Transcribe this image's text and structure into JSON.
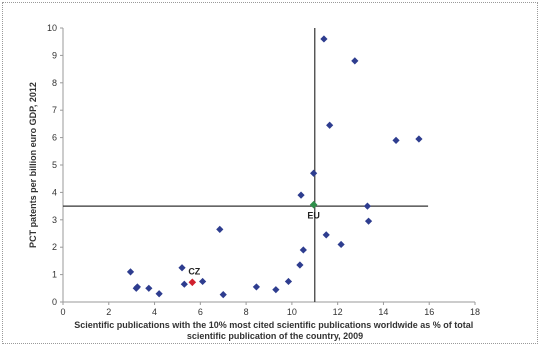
{
  "chart_data": {
    "type": "scatter",
    "title": "",
    "xlabel_lines": [
      "Scientific publications with the 10% most cited scientific publications worldwide as % of total",
      "scientific publication of the country, 2009"
    ],
    "ylabel": "PCT patents per billion euro GDP, 2012",
    "xlim": [
      0,
      18
    ],
    "ylim": [
      0,
      10
    ],
    "x_ticks": [
      "0",
      "2",
      "4",
      "6",
      "8",
      "10",
      "12",
      "14",
      "16",
      "18"
    ],
    "y_ticks": [
      "0",
      "1",
      "2",
      "3",
      "4",
      "5",
      "6",
      "7",
      "8",
      "9",
      "10"
    ],
    "grid": false,
    "colors": {
      "countries": "#2e3d8f",
      "eu": "#2f8f4a",
      "cz": "#d0202e",
      "reference_lines": "#333333",
      "axis": "#9a9a9a"
    },
    "reference_lines": {
      "vertical_x": 11.0,
      "horizontal_y": 3.5,
      "vertical_y_range": [
        0,
        10
      ],
      "horizontal_x_range": [
        0,
        15.95
      ]
    },
    "highlighted": [
      {
        "label": "EU",
        "x": 10.95,
        "y": 3.55,
        "color": "#2f8f4a"
      },
      {
        "label": "CZ",
        "x": 5.65,
        "y": 0.72,
        "color": "#d0202e"
      }
    ],
    "points": [
      {
        "x": 2.95,
        "y": 1.1
      },
      {
        "x": 3.2,
        "y": 0.5
      },
      {
        "x": 3.25,
        "y": 0.55
      },
      {
        "x": 3.75,
        "y": 0.5
      },
      {
        "x": 4.2,
        "y": 0.3
      },
      {
        "x": 5.2,
        "y": 1.25
      },
      {
        "x": 5.3,
        "y": 0.65
      },
      {
        "x": 6.1,
        "y": 0.75
      },
      {
        "x": 6.85,
        "y": 2.65
      },
      {
        "x": 7.0,
        "y": 0.27
      },
      {
        "x": 8.45,
        "y": 0.55
      },
      {
        "x": 9.3,
        "y": 0.45
      },
      {
        "x": 9.85,
        "y": 0.75
      },
      {
        "x": 10.35,
        "y": 1.35
      },
      {
        "x": 10.5,
        "y": 1.9
      },
      {
        "x": 10.4,
        "y": 3.9
      },
      {
        "x": 10.95,
        "y": 4.7
      },
      {
        "x": 11.4,
        "y": 9.6
      },
      {
        "x": 11.5,
        "y": 2.45
      },
      {
        "x": 11.65,
        "y": 6.45
      },
      {
        "x": 12.15,
        "y": 2.1
      },
      {
        "x": 12.75,
        "y": 8.8
      },
      {
        "x": 13.3,
        "y": 3.5
      },
      {
        "x": 13.35,
        "y": 2.95
      },
      {
        "x": 14.55,
        "y": 5.9
      },
      {
        "x": 15.55,
        "y": 5.95
      }
    ]
  }
}
